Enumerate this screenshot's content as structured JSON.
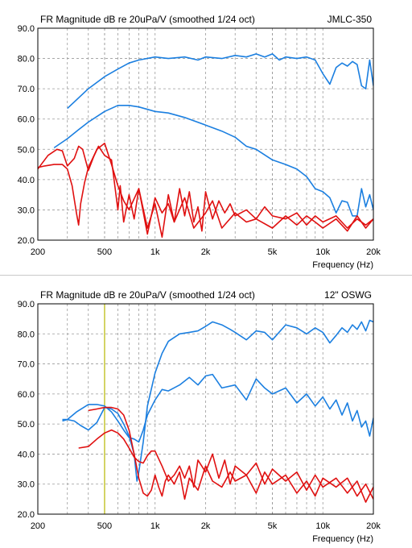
{
  "colors": {
    "blue": "#1b7fe0",
    "red": "#e01010",
    "marker": "#b8b800",
    "grid": "#9a9a9a",
    "frame": "#000000",
    "separator": "#c8c8c8"
  },
  "chart_data": [
    {
      "type": "line",
      "title": "FR Magnitude dB re 20uPa/V (smoothed 1/24 oct)",
      "tag": "JMLC-350",
      "xlabel": "Frequency (Hz)",
      "ylabel": "",
      "xscale": "log",
      "xlim": [
        200,
        20000
      ],
      "ylim": [
        20,
        90
      ],
      "xticks": [
        {
          "value": 200,
          "label": "200"
        },
        {
          "value": 500,
          "label": "500"
        },
        {
          "value": 1000,
          "label": "1k"
        },
        {
          "value": 2000,
          "label": "2k"
        },
        {
          "value": 5000,
          "label": "5k"
        },
        {
          "value": 10000,
          "label": "10k"
        },
        {
          "value": 20000,
          "label": "20k"
        }
      ],
      "yticks": [
        {
          "value": 20,
          "label": "20.0"
        },
        {
          "value": 30,
          "label": "30.0"
        },
        {
          "value": 40,
          "label": "40.0"
        },
        {
          "value": 50,
          "label": "50.0"
        },
        {
          "value": 60,
          "label": "60.0"
        },
        {
          "value": 70,
          "label": "70.0"
        },
        {
          "value": 80,
          "label": "80.0"
        },
        {
          "value": 90,
          "label": "90.0"
        }
      ],
      "grid": true,
      "series": [
        {
          "color": "blue",
          "x": [
            300,
            350,
            400,
            500,
            600,
            700,
            800,
            1000,
            1200,
            1500,
            1800,
            2000,
            2500,
            3000,
            3500,
            4000,
            4500,
            5000,
            5500,
            6000,
            7000,
            8000,
            9000,
            10000,
            11000,
            12000,
            13000,
            14000,
            15000,
            16000,
            17000,
            18000,
            19000,
            20000
          ],
          "y": [
            63.5,
            67,
            70,
            74,
            76.5,
            78.5,
            79.5,
            80.5,
            80,
            80.5,
            79.5,
            80.5,
            80,
            81,
            80.5,
            81.5,
            80.5,
            81.5,
            79.5,
            80.5,
            80,
            80.5,
            79.5,
            75,
            71.5,
            77,
            78.5,
            77.5,
            79,
            78,
            71,
            70,
            79.5,
            71
          ]
        },
        {
          "color": "blue",
          "x": [
            250,
            300,
            350,
            400,
            500,
            600,
            700,
            800,
            1000,
            1200,
            1500,
            2000,
            2500,
            3000,
            3500,
            4000,
            5000,
            6000,
            7000,
            8000,
            9000,
            10000,
            11000,
            12000,
            13000,
            14000,
            15000,
            16000,
            17000,
            18000,
            19000,
            20000
          ],
          "y": [
            50.5,
            53.5,
            56.5,
            59,
            62.5,
            64.5,
            64.5,
            64,
            62.5,
            62,
            60.5,
            58,
            56,
            54,
            51,
            50,
            46.5,
            45,
            43.5,
            41,
            37,
            36,
            34,
            29,
            33,
            32.5,
            28,
            28,
            37,
            31,
            35,
            30
          ]
        },
        {
          "color": "red",
          "x": [
            200,
            230,
            260,
            280,
            300,
            330,
            350,
            370,
            400,
            430,
            460,
            500,
            550,
            600,
            620,
            650,
            700,
            750,
            800,
            900,
            1000,
            1100,
            1200,
            1300,
            1400,
            1500,
            1600,
            1700,
            1800,
            1900,
            2000,
            2200,
            2400,
            2600,
            2800,
            3000,
            3500,
            4000,
            4500,
            5000,
            6000,
            7000,
            8000,
            9000,
            10000,
            12000,
            14000,
            16000,
            18000,
            20000
          ],
          "y": [
            43.5,
            48,
            50,
            49.5,
            44.5,
            47,
            51,
            50,
            43,
            47.5,
            51,
            48,
            46.5,
            30,
            38,
            26,
            35,
            27,
            37,
            24,
            32,
            21,
            35,
            26,
            37,
            28,
            36,
            26,
            31,
            23,
            36,
            27,
            33,
            29,
            32,
            28,
            30,
            27,
            31,
            28,
            27,
            29,
            25,
            28,
            26,
            28,
            24,
            27,
            25,
            27
          ]
        },
        {
          "color": "red",
          "x": [
            200,
            220,
            250,
            280,
            300,
            320,
            340,
            350,
            360,
            380,
            400,
            450,
            500,
            550,
            600,
            650,
            700,
            800,
            900,
            1000,
            1100,
            1200,
            1300,
            1500,
            1700,
            2000,
            2200,
            2500,
            3000,
            3500,
            4000,
            5000,
            6000,
            7000,
            8000,
            9000,
            10000,
            12000,
            14000,
            16000,
            18000,
            20000
          ],
          "y": [
            44,
            44.5,
            45,
            45,
            43.5,
            38,
            29,
            25,
            32,
            39,
            44,
            50,
            52,
            45,
            38,
            33,
            30,
            37,
            22,
            34,
            29,
            32,
            26,
            34,
            24,
            29,
            33,
            24,
            29,
            26,
            27,
            24,
            28,
            25,
            28,
            26,
            24,
            27,
            23,
            28,
            24,
            27
          ]
        }
      ]
    },
    {
      "type": "line",
      "title": "FR Magnitude dB re 20uPa/V (smoothed 1/24 oct)",
      "tag": "12\" OSWG",
      "xlabel": "Frequency (Hz)",
      "ylabel": "",
      "xscale": "log",
      "xlim": [
        200,
        20000
      ],
      "ylim": [
        20,
        90
      ],
      "xticks": [
        {
          "value": 200,
          "label": "200"
        },
        {
          "value": 500,
          "label": "500"
        },
        {
          "value": 1000,
          "label": "1k"
        },
        {
          "value": 2000,
          "label": "2k"
        },
        {
          "value": 5000,
          "label": "5k"
        },
        {
          "value": 10000,
          "label": "10k"
        },
        {
          "value": 20000,
          "label": "20k"
        }
      ],
      "yticks": [
        {
          "value": 20,
          "label": "20.0"
        },
        {
          "value": 30,
          "label": "30.0"
        },
        {
          "value": 40,
          "label": "40.0"
        },
        {
          "value": 50,
          "label": "50.0"
        },
        {
          "value": 60,
          "label": "60.0"
        },
        {
          "value": 70,
          "label": "70.0"
        },
        {
          "value": 80,
          "label": "80.0"
        },
        {
          "value": 90,
          "label": "90.0"
        }
      ],
      "grid": true,
      "vertical_marker": 500,
      "series": [
        {
          "color": "blue",
          "x": [
            280,
            300,
            330,
            360,
            400,
            450,
            500,
            550,
            600,
            650,
            700,
            750,
            780,
            800,
            850,
            900,
            1000,
            1100,
            1200,
            1400,
            1600,
            1800,
            2000,
            2200,
            2500,
            2800,
            3000,
            3500,
            4000,
            4500,
            5000,
            6000,
            7000,
            8000,
            9000,
            10000,
            11000,
            12000,
            13000,
            14000,
            15000,
            16000,
            17000,
            18000,
            19000,
            20000
          ],
          "y": [
            51.5,
            51.5,
            51,
            49.5,
            48,
            50.5,
            55.5,
            55,
            53.5,
            50,
            46,
            40,
            31,
            34,
            44,
            56,
            67,
            73.5,
            77.5,
            80,
            80.5,
            81,
            82.5,
            84,
            83,
            81.5,
            80.5,
            78,
            81,
            80.5,
            78,
            83,
            82,
            80,
            82,
            80.5,
            77,
            79.5,
            82,
            80.5,
            83,
            81.5,
            84,
            81,
            84.5,
            84
          ]
        },
        {
          "color": "blue",
          "x": [
            280,
            300,
            340,
            400,
            450,
            500,
            550,
            600,
            650,
            700,
            750,
            800,
            850,
            900,
            1000,
            1100,
            1200,
            1400,
            1600,
            1800,
            2000,
            2200,
            2500,
            3000,
            3500,
            4000,
            4500,
            5000,
            6000,
            7000,
            8000,
            9000,
            10000,
            11000,
            12000,
            13000,
            14000,
            15000,
            16000,
            17000,
            18000,
            19000,
            20000
          ],
          "y": [
            51,
            51.5,
            54,
            56.5,
            56.5,
            56,
            54,
            51,
            48,
            45.5,
            45,
            44,
            48,
            53,
            58,
            61.5,
            61,
            63,
            65.5,
            63,
            66,
            66.5,
            62,
            63,
            58,
            65,
            62,
            60,
            62,
            57,
            60,
            56,
            59,
            55,
            58,
            53,
            57,
            51,
            54.5,
            49,
            51,
            46,
            52
          ]
        },
        {
          "color": "red",
          "x": [
            350,
            400,
            450,
            500,
            550,
            600,
            650,
            700,
            750,
            800,
            850,
            900,
            950,
            1000,
            1100,
            1200,
            1300,
            1400,
            1500,
            1600,
            1700,
            1800,
            2000,
            2200,
            2400,
            2600,
            2800,
            3000,
            3500,
            4000,
            4500,
            5000,
            6000,
            7000,
            8000,
            9000,
            10000,
            12000,
            14000,
            16000,
            18000,
            20000
          ],
          "y": [
            42,
            42.5,
            45,
            47,
            48,
            47,
            45,
            42,
            39,
            37.5,
            37,
            39.5,
            41,
            41,
            36,
            31,
            33,
            36,
            32,
            36,
            29,
            38,
            34,
            40,
            32,
            38,
            30,
            36,
            33,
            37,
            30,
            35,
            31,
            34,
            28,
            33,
            29,
            32,
            27,
            31,
            24,
            29
          ]
        },
        {
          "color": "red",
          "x": [
            400,
            450,
            500,
            550,
            600,
            650,
            700,
            750,
            800,
            850,
            900,
            950,
            1000,
            1050,
            1100,
            1150,
            1200,
            1300,
            1400,
            1500,
            1600,
            1800,
            2000,
            2200,
            2500,
            2800,
            3000,
            3500,
            4000,
            4500,
            5000,
            6000,
            7000,
            8000,
            9000,
            10000,
            12000,
            14000,
            16000,
            18000,
            20000
          ],
          "y": [
            54.5,
            55,
            55.5,
            55.5,
            55,
            53,
            48,
            40,
            32,
            27,
            26,
            28,
            33,
            29,
            26,
            31,
            33,
            30,
            34,
            25,
            32,
            28,
            36,
            31,
            29,
            34,
            31,
            33,
            27,
            34,
            30,
            33,
            27,
            31,
            26,
            32,
            29,
            32,
            26,
            30,
            25
          ]
        }
      ]
    }
  ]
}
